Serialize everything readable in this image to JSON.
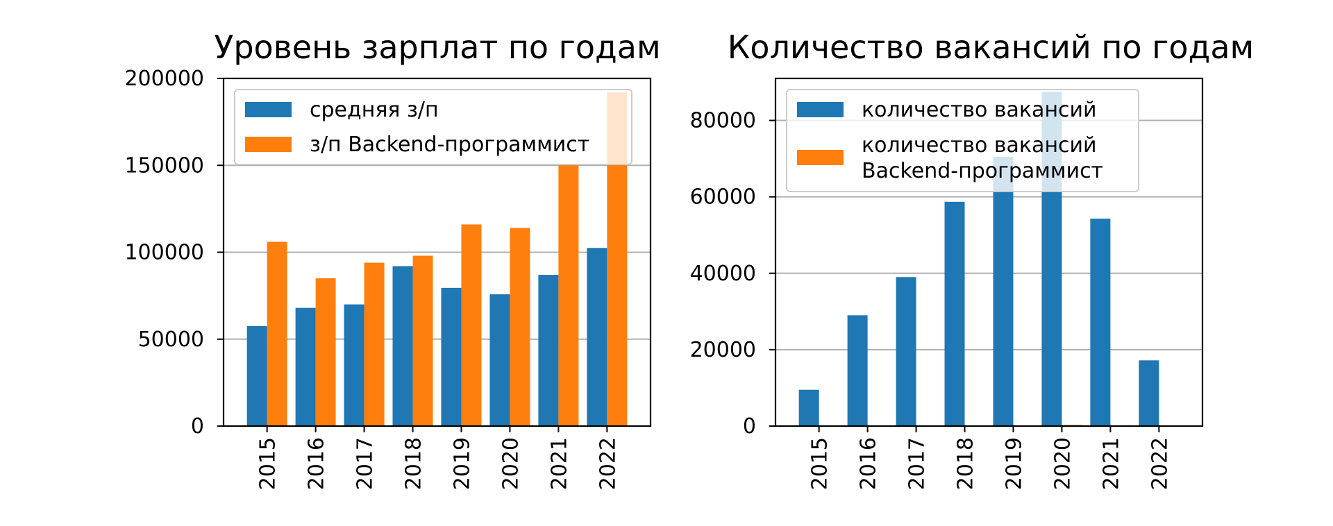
{
  "chart_data": [
    {
      "type": "bar",
      "title": "Уровень зарплат по годам",
      "xlabel": "",
      "ylabel": "",
      "categories": [
        "2015",
        "2016",
        "2017",
        "2018",
        "2019",
        "2020",
        "2021",
        "2022"
      ],
      "series": [
        {
          "name": "средняя з/п",
          "values": [
            57500,
            68000,
            70000,
            92000,
            79500,
            75800,
            87000,
            102500
          ]
        },
        {
          "name": "з/п Backend-программист",
          "values": [
            106000,
            85000,
            94000,
            98000,
            116000,
            114000,
            150000,
            192000
          ]
        }
      ],
      "ylim": [
        0,
        200000
      ],
      "yticks": [
        "0",
        "50000",
        "100000",
        "150000",
        "200000"
      ],
      "colors": [
        "#1f77b4",
        "#ff7f0e"
      ],
      "grid": "y",
      "legend": "upper-left"
    },
    {
      "type": "bar",
      "title": "Количество вакансий по годам",
      "xlabel": "",
      "ylabel": "",
      "categories": [
        "2015",
        "2016",
        "2017",
        "2018",
        "2019",
        "2020",
        "2021",
        "2022"
      ],
      "series": [
        {
          "name": "количество вакансий",
          "values": [
            9500,
            29000,
            39000,
            58700,
            70500,
            87500,
            54300,
            17200
          ]
        },
        {
          "name": "количество вакансий\nBackend-программист",
          "values": [
            5,
            20,
            40,
            80,
            150,
            300,
            200,
            30
          ]
        }
      ],
      "ylim": [
        0,
        91000
      ],
      "yticks": [
        "0",
        "20000",
        "40000",
        "60000",
        "80000"
      ],
      "colors": [
        "#1f77b4",
        "#ff7f0e"
      ],
      "grid": "y",
      "legend": "upper-left"
    }
  ]
}
